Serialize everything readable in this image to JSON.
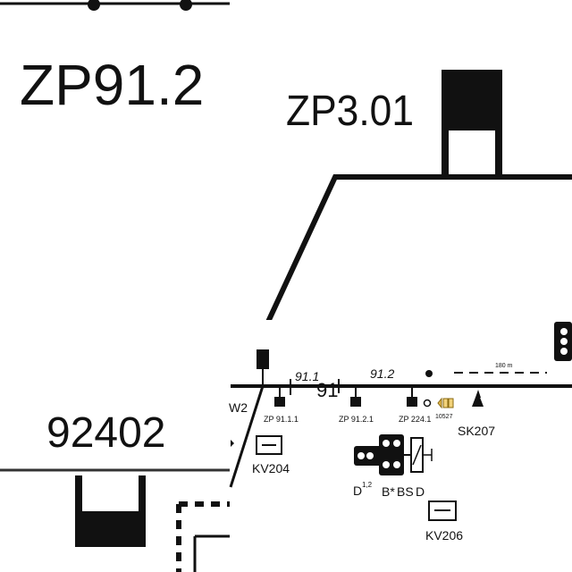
{
  "left_panel": {
    "title": "ZP91.2",
    "station_number": "92402"
  },
  "right_panel": {
    "title": "ZP3.01",
    "track_labels": {
      "section_a": "91.1",
      "main": "91",
      "section_b": "91.2",
      "left_edge": "W2",
      "distance": "180 m"
    },
    "signals": {
      "s1": "ZP 91.1.1",
      "s2": "ZP 91.2.1",
      "s3": "ZP 224.1",
      "s4": "10527",
      "sk": "SK207"
    },
    "boxes": {
      "kv1": "KV204",
      "kv2": "KV206"
    },
    "lower_labels": {
      "d": "D",
      "d_sup": "1,2",
      "b": "B*",
      "bs": "BS",
      "d2": "D"
    }
  }
}
